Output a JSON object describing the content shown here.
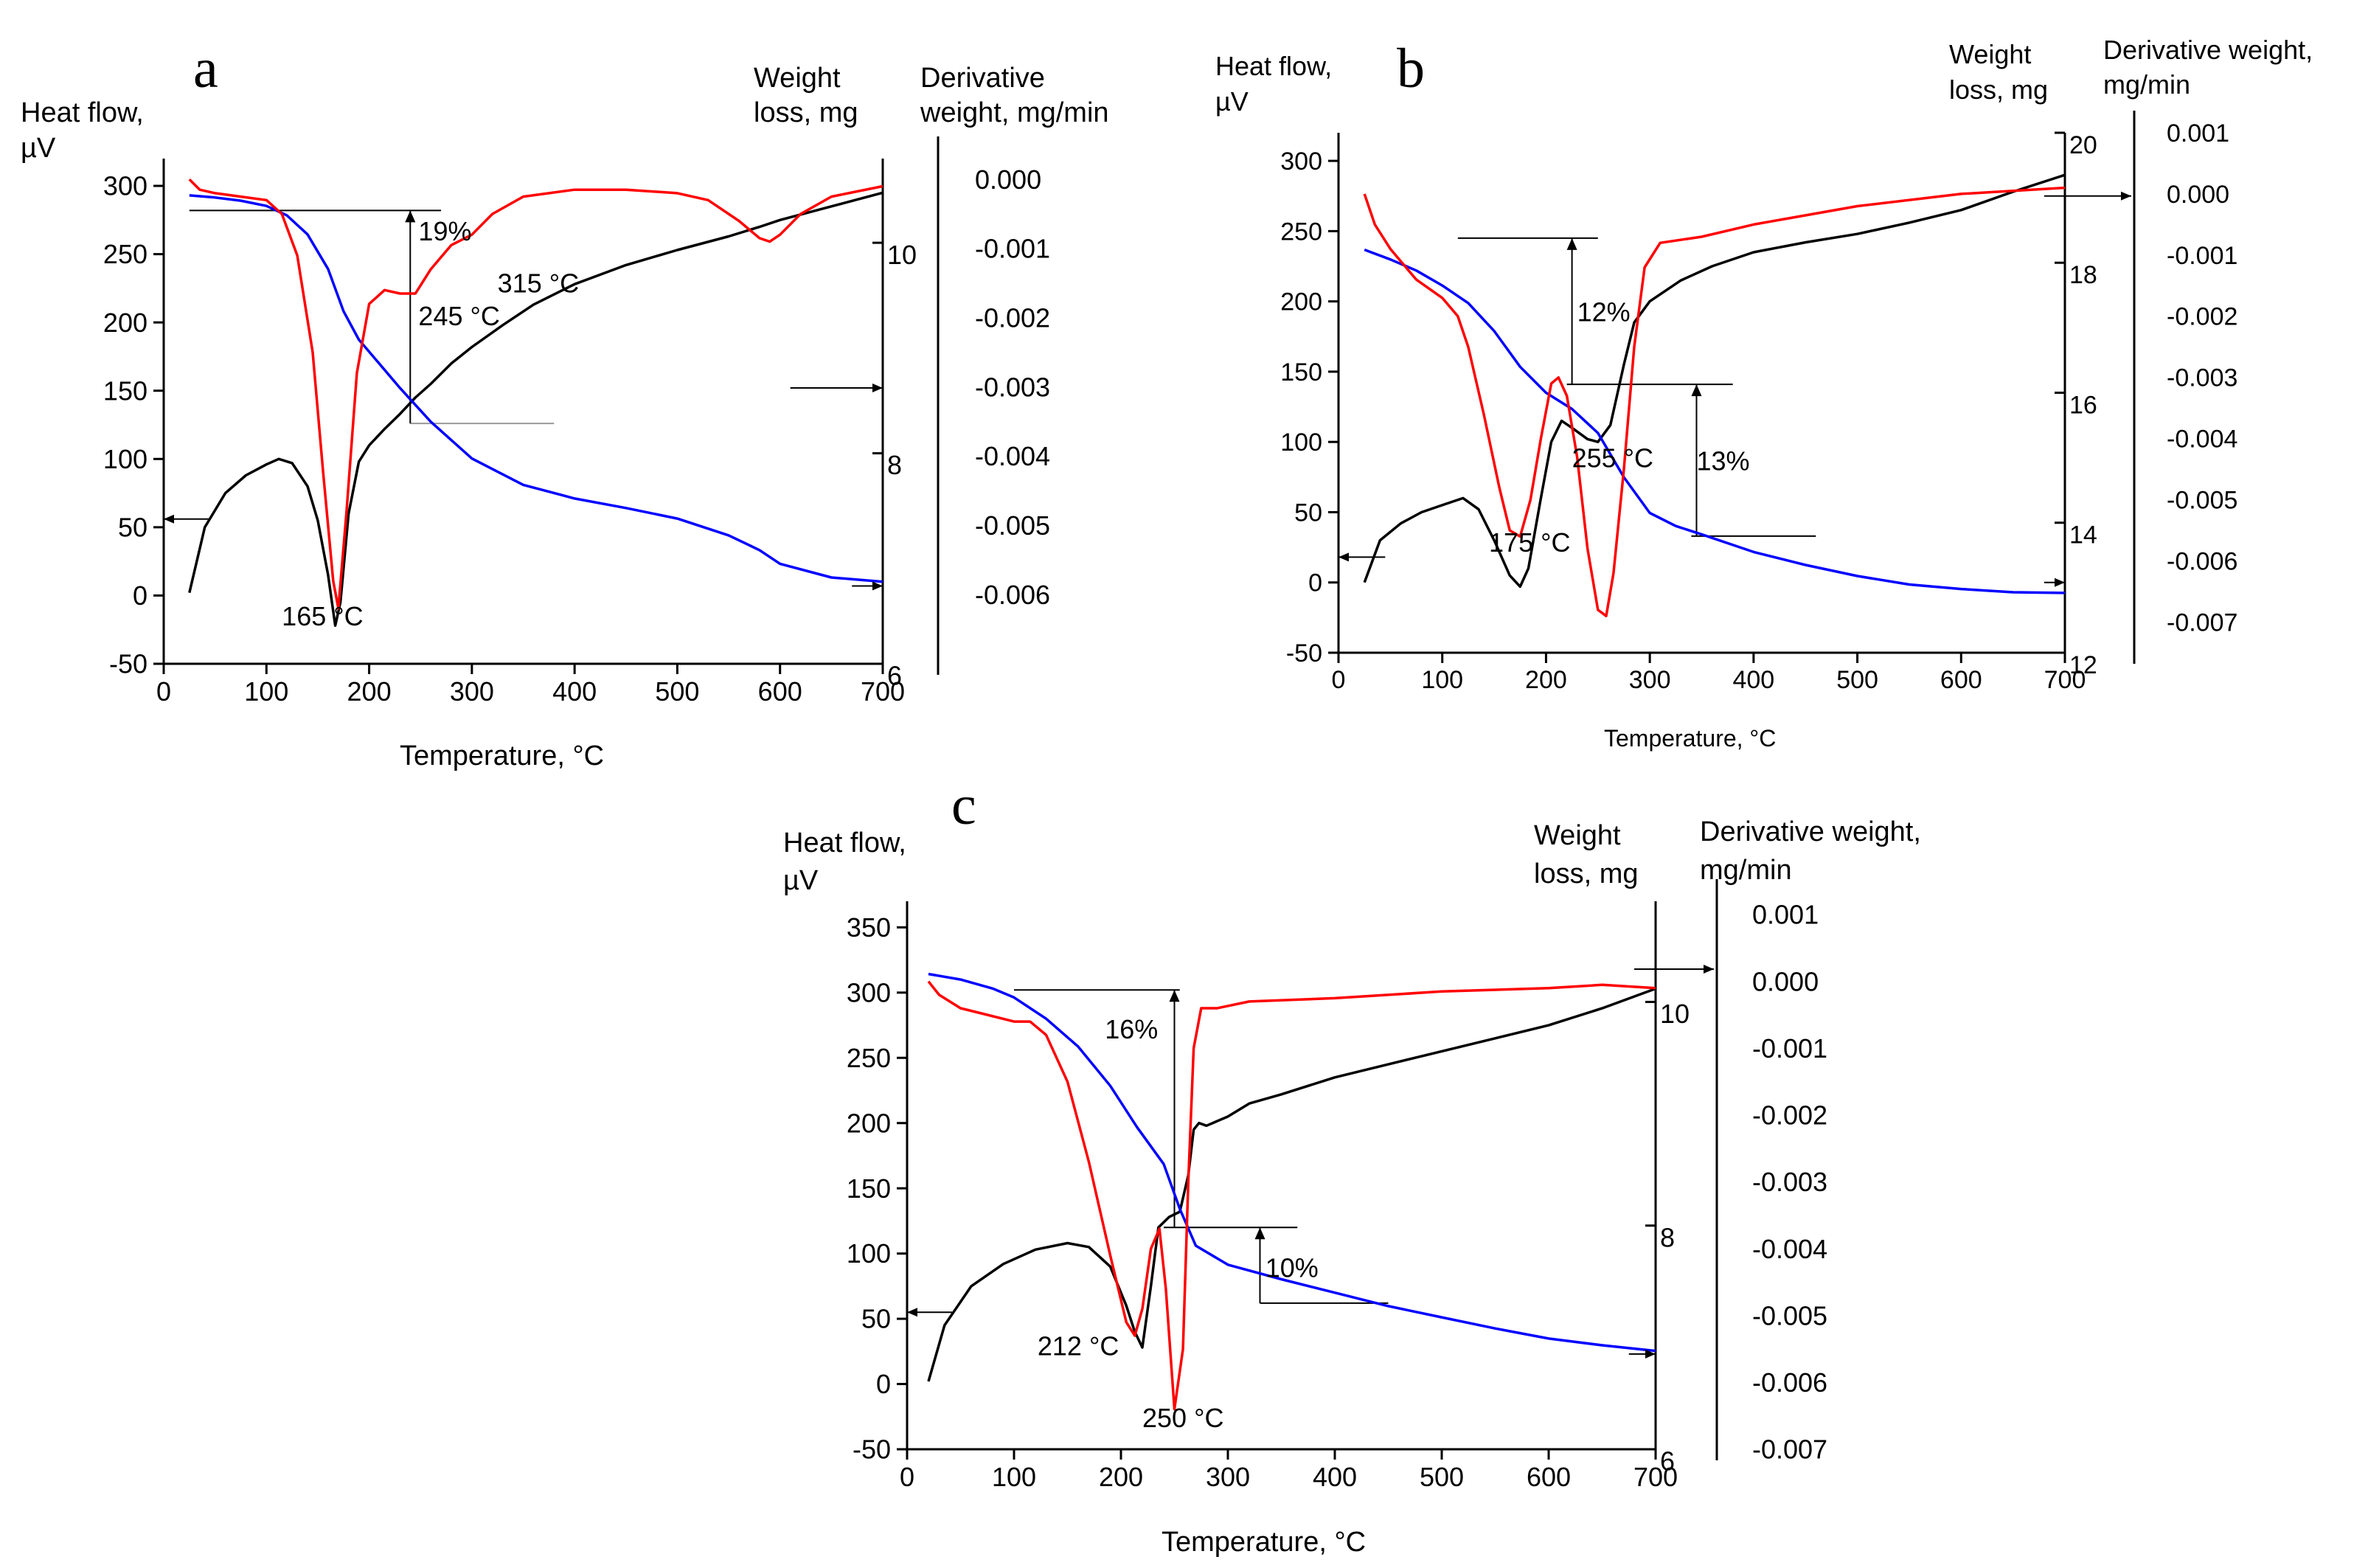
{
  "chart_data": [
    {
      "panel_letter": "a",
      "type": "line",
      "left_axis_label": [
        "Heat flow,",
        "µV"
      ],
      "right_axis_1_label": [
        "Weight",
        "loss, mg"
      ],
      "right_axis_2_label": [
        "Derivative",
        "weight, mg/min"
      ],
      "xlabel": "Temperature, °C",
      "xlim": [
        0,
        700
      ],
      "ylim_left": [
        -50,
        320
      ],
      "ylim_right_1": [
        6,
        10.8
      ],
      "ylim_right_2": [
        -0.007,
        0.0003
      ],
      "xticks": [
        0,
        100,
        200,
        300,
        400,
        500,
        600,
        700
      ],
      "yticks_left": [
        -50,
        0,
        50,
        100,
        150,
        200,
        250,
        300
      ],
      "yticks_right_1": [
        6,
        8,
        10
      ],
      "yticks_right_2": [
        0,
        -0.001,
        -0.002,
        -0.003,
        -0.004,
        -0.005,
        -0.006
      ],
      "ytick_labels_right_2": [
        "0.000",
        "-0.001",
        "-0.002",
        "-0.003",
        "-0.004",
        "-0.005",
        "-0.006"
      ],
      "series": [
        {
          "color": "#000000",
          "axis": "left",
          "x": [
            25,
            40,
            60,
            80,
            100,
            112,
            125,
            140,
            150,
            160,
            167,
            172,
            180,
            190,
            200,
            215,
            230,
            245,
            260,
            280,
            300,
            330,
            360,
            400,
            450,
            500,
            550,
            580,
            600,
            650,
            700
          ],
          "y": [
            2,
            50,
            75,
            88,
            96,
            100,
            97,
            80,
            55,
            15,
            -22,
            -5,
            60,
            98,
            110,
            122,
            133,
            145,
            155,
            170,
            182,
            198,
            213,
            228,
            242,
            253,
            263,
            270,
            275,
            285,
            295
          ]
        },
        {
          "color": "#0000ff",
          "axis": "right_1",
          "x": [
            25,
            50,
            75,
            100,
            120,
            140,
            160,
            175,
            190,
            210,
            230,
            260,
            300,
            350,
            400,
            450,
            500,
            550,
            580,
            600,
            650,
            700
          ],
          "y": [
            10.45,
            10.43,
            10.4,
            10.35,
            10.26,
            10.08,
            9.75,
            9.35,
            9.08,
            8.85,
            8.62,
            8.3,
            7.95,
            7.7,
            7.57,
            7.48,
            7.38,
            7.22,
            7.08,
            6.95,
            6.82,
            6.78
          ]
        },
        {
          "color": "#ff0000",
          "axis": "right_2",
          "x": [
            25,
            35,
            50,
            75,
            100,
            115,
            130,
            145,
            155,
            165,
            170,
            178,
            188,
            200,
            215,
            230,
            245,
            260,
            280,
            300,
            320,
            350,
            400,
            450,
            500,
            530,
            560,
            580,
            590,
            600,
            620,
            650,
            700
          ],
          "y": [
            -0.0,
            -0.00015,
            -0.0002,
            -0.00025,
            -0.0003,
            -0.0005,
            -0.0011,
            -0.0025,
            -0.0042,
            -0.0058,
            -0.0062,
            -0.0048,
            -0.0028,
            -0.0018,
            -0.0016,
            -0.00165,
            -0.00165,
            -0.0013,
            -0.00095,
            -0.0008,
            -0.0005,
            -0.00025,
            -0.00015,
            -0.00015,
            -0.0002,
            -0.0003,
            -0.0006,
            -0.00085,
            -0.0009,
            -0.0008,
            -0.0005,
            -0.00025,
            -0.0001
          ]
        }
      ],
      "annotations": [
        {
          "text": "165 °C",
          "x": 115,
          "y": -22
        },
        {
          "text": "245 °C",
          "x": 248,
          "y": 198
        },
        {
          "text": "315 °C",
          "x": 325,
          "y": 222
        },
        {
          "text": "19%",
          "x": 248,
          "y": 260
        }
      ],
      "guides": [
        {
          "kind": "hline",
          "x1": 25,
          "x2": 270,
          "y": 282
        },
        {
          "kind": "hline",
          "x1": 240,
          "x2": 380,
          "y": 126,
          "color": "#999999"
        },
        {
          "kind": "vline",
          "x": 240,
          "y1": 126,
          "y2": 282
        }
      ],
      "axis_arrows": [
        {
          "y": 56,
          "direction": "left",
          "x_from": 45,
          "x_to": 0
        },
        {
          "y": 152,
          "direction": "right",
          "x_from": 610,
          "x_to": 700
        },
        {
          "y": 7,
          "direction": "right",
          "x_from": 670,
          "x_to": 700
        }
      ]
    },
    {
      "panel_letter": "b",
      "type": "line",
      "left_axis_label": [
        "Heat flow,",
        "µV"
      ],
      "right_axis_1_label": [
        "Weight",
        "loss, mg"
      ],
      "right_axis_2_label": [
        "Derivative weight,",
        "mg/min"
      ],
      "xlabel": "Temperature, °C",
      "xlim": [
        0,
        700
      ],
      "ylim_left": [
        -50,
        320
      ],
      "ylim_right_1": [
        12,
        20
      ],
      "ylim_right_2": [
        -0.0075,
        0.001
      ],
      "xticks": [
        0,
        100,
        200,
        300,
        400,
        500,
        600,
        700
      ],
      "yticks_left": [
        -50,
        0,
        50,
        100,
        150,
        200,
        250,
        300
      ],
      "yticks_right_1": [
        12,
        14,
        16,
        18,
        20
      ],
      "yticks_right_2": [
        0.001,
        0,
        -0.001,
        -0.002,
        -0.003,
        -0.004,
        -0.005,
        -0.006,
        -0.007
      ],
      "ytick_labels_right_2": [
        "0.001",
        "0.000",
        "-0.001",
        "-0.002",
        "-0.003",
        "-0.004",
        "-0.005",
        "-0.006",
        "-0.007"
      ],
      "series": [
        {
          "color": "#000000",
          "axis": "left",
          "x": [
            25,
            40,
            60,
            80,
            100,
            120,
            135,
            150,
            165,
            175,
            183,
            195,
            205,
            215,
            225,
            240,
            250,
            262,
            275,
            285,
            300,
            330,
            360,
            400,
            450,
            500,
            550,
            600,
            650,
            700
          ],
          "y": [
            0,
            30,
            42,
            50,
            55,
            60,
            52,
            30,
            5,
            -3,
            10,
            60,
            100,
            115,
            110,
            102,
            100,
            112,
            155,
            185,
            200,
            215,
            225,
            235,
            242,
            248,
            256,
            265,
            278,
            290
          ]
        },
        {
          "color": "#0000ff",
          "axis": "right_1",
          "x": [
            25,
            50,
            75,
            100,
            125,
            150,
            175,
            200,
            225,
            250,
            275,
            300,
            325,
            350,
            400,
            450,
            500,
            550,
            600,
            650,
            700
          ],
          "y": [
            18.2,
            18.05,
            17.88,
            17.65,
            17.38,
            16.95,
            16.4,
            16.0,
            15.75,
            15.38,
            14.7,
            14.15,
            13.95,
            13.82,
            13.55,
            13.35,
            13.18,
            13.05,
            12.98,
            12.93,
            12.92
          ]
        },
        {
          "color": "#ff0000",
          "axis": "right_2",
          "x": [
            25,
            35,
            50,
            75,
            100,
            115,
            125,
            140,
            155,
            165,
            175,
            185,
            195,
            205,
            212,
            220,
            230,
            240,
            250,
            258,
            265,
            275,
            285,
            295,
            310,
            350,
            400,
            500,
            600,
            700
          ],
          "y": [
            0.0,
            -0.0005,
            -0.0009,
            -0.0014,
            -0.0017,
            -0.002,
            -0.0025,
            -0.0036,
            -0.0048,
            -0.0055,
            -0.0056,
            -0.005,
            -0.004,
            -0.0031,
            -0.003,
            -0.0033,
            -0.0043,
            -0.0058,
            -0.0068,
            -0.0069,
            -0.0062,
            -0.0045,
            -0.0025,
            -0.0012,
            -0.0008,
            -0.0007,
            -0.0005,
            -0.0002,
            -0.0,
            0.0001
          ]
        }
      ],
      "annotations": [
        {
          "text": "175 °C",
          "x": 145,
          "y": 22
        },
        {
          "text": "255 °C",
          "x": 225,
          "y": 82
        },
        {
          "text": "12%",
          "x": 230,
          "y": 186
        },
        {
          "text": "13%",
          "x": 345,
          "y": 80
        }
      ],
      "guides": [
        {
          "kind": "hline",
          "x1": 115,
          "x2": 250,
          "y": 245
        },
        {
          "kind": "hline",
          "x1": 220,
          "x2": 380,
          "y": 141
        },
        {
          "kind": "vline",
          "x": 225,
          "y1": 141,
          "y2": 245
        },
        {
          "kind": "hline",
          "x1": 340,
          "x2": 460,
          "y": 33
        },
        {
          "kind": "vline",
          "x": 345,
          "y1": 33,
          "y2": 141
        }
      ],
      "axis_arrows": [
        {
          "y": 18,
          "direction": "left",
          "x_from": 45,
          "x_to": 0
        },
        {
          "y": 275,
          "direction": "right",
          "x_from": 680,
          "x_to": 760
        },
        {
          "y": 0,
          "direction": "right",
          "x_from": 680,
          "x_to": 700
        }
      ]
    },
    {
      "panel_letter": "c",
      "type": "line",
      "left_axis_label": [
        "Heat flow,",
        "µV"
      ],
      "right_axis_1_label": [
        "Weight",
        "loss, mg"
      ],
      "right_axis_2_label": [
        "Derivative weight,",
        "mg/min"
      ],
      "xlabel": "Temperature, °C",
      "xlim": [
        0,
        700
      ],
      "ylim_left": [
        -50,
        370
      ],
      "ylim_right_1": [
        6,
        10.9
      ],
      "ylim_right_2": [
        -0.007,
        0.0012
      ],
      "xticks": [
        0,
        100,
        200,
        300,
        400,
        500,
        600,
        700
      ],
      "yticks_left": [
        -50,
        0,
        50,
        100,
        150,
        200,
        250,
        300,
        350
      ],
      "yticks_right_1": [
        6,
        8,
        10
      ],
      "yticks_right_2": [
        0.001,
        0,
        -0.001,
        -0.002,
        -0.003,
        -0.004,
        -0.005,
        -0.006,
        -0.007
      ],
      "ytick_labels_right_2": [
        "0.001",
        "0.000",
        "-0.001",
        "-0.002",
        "-0.003",
        "-0.004",
        "-0.005",
        "-0.006",
        "-0.007"
      ],
      "series": [
        {
          "color": "#000000",
          "axis": "left",
          "x": [
            20,
            35,
            60,
            90,
            120,
            150,
            170,
            190,
            205,
            213,
            220,
            228,
            235,
            245,
            255,
            263,
            268,
            273,
            280,
            300,
            320,
            350,
            400,
            450,
            500,
            550,
            600,
            650,
            700
          ],
          "y": [
            2,
            45,
            75,
            92,
            103,
            108,
            105,
            90,
            60,
            40,
            28,
            75,
            120,
            128,
            132,
            160,
            195,
            200,
            198,
            205,
            215,
            222,
            235,
            245,
            255,
            265,
            275,
            288,
            303
          ]
        },
        {
          "color": "#0000ff",
          "axis": "right_1",
          "x": [
            20,
            50,
            80,
            100,
            130,
            160,
            190,
            215,
            240,
            255,
            270,
            300,
            350,
            400,
            450,
            500,
            550,
            600,
            650,
            700
          ],
          "y": [
            10.25,
            10.2,
            10.12,
            10.04,
            9.85,
            9.6,
            9.25,
            8.88,
            8.55,
            8.15,
            7.82,
            7.65,
            7.52,
            7.4,
            7.28,
            7.18,
            7.08,
            6.99,
            6.93,
            6.88
          ]
        },
        {
          "color": "#ff0000",
          "axis": "right_2",
          "x": [
            20,
            30,
            50,
            75,
            100,
            115,
            130,
            150,
            170,
            190,
            205,
            213,
            220,
            228,
            236,
            242,
            250,
            258,
            263,
            268,
            275,
            290,
            320,
            400,
            500,
            600,
            650,
            700
          ],
          "y": [
            0.0,
            -0.0002,
            -0.0004,
            -0.0005,
            -0.0006,
            -0.0006,
            -0.0008,
            -0.0015,
            -0.0027,
            -0.0041,
            -0.0051,
            -0.0053,
            -0.0049,
            -0.004,
            -0.0037,
            -0.0046,
            -0.0064,
            -0.0055,
            -0.003,
            -0.001,
            -0.0004,
            -0.0004,
            -0.0003,
            -0.00025,
            -0.00015,
            -0.0001,
            -5e-05,
            -0.0001
          ]
        }
      ],
      "annotations": [
        {
          "text": "212 °C",
          "x": 122,
          "y": 22
        },
        {
          "text": "250 °C",
          "x": 220,
          "y": -33
        },
        {
          "text": "16%",
          "x": 185,
          "y": 265
        },
        {
          "text": "10%",
          "x": 335,
          "y": 82
        }
      ],
      "guides": [
        {
          "kind": "hline",
          "x1": 100,
          "x2": 255,
          "y": 302
        },
        {
          "kind": "vline",
          "x": 250,
          "y1": 120,
          "y2": 302
        },
        {
          "kind": "hline",
          "x1": 240,
          "x2": 365,
          "y": 120
        },
        {
          "kind": "hline",
          "x1": 330,
          "x2": 450,
          "y": 62
        },
        {
          "kind": "vline",
          "x": 330,
          "y1": 62,
          "y2": 120
        }
      ],
      "axis_arrows": [
        {
          "y": 55,
          "direction": "left",
          "x_from": 42,
          "x_to": 0
        },
        {
          "y": 318,
          "direction": "right",
          "x_from": 680,
          "x_to": 750
        },
        {
          "y": 23,
          "direction": "right",
          "x_from": 675,
          "x_to": 700
        }
      ]
    }
  ]
}
